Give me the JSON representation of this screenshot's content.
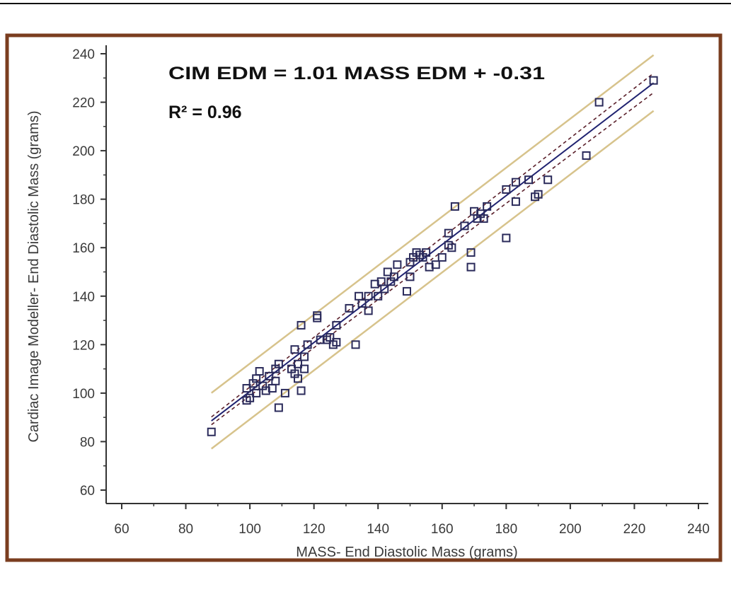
{
  "chart_data": {
    "type": "scatter",
    "xlabel": "MASS- End Diastolic Mass (grams)",
    "ylabel": "Cardiac Image Modeller- End Diastolic Mass (grams)",
    "xlim": [
      60,
      240
    ],
    "ylim": [
      60,
      240
    ],
    "x_ticks": [
      60,
      80,
      100,
      120,
      140,
      160,
      180,
      200,
      220,
      240
    ],
    "y_ticks": [
      60,
      80,
      100,
      120,
      140,
      160,
      180,
      200,
      220,
      240
    ],
    "annotations": {
      "equation": "CIM EDM = 1.01 MASS EDM + -0.31",
      "r_squared": "R² = 0.96"
    },
    "regression": {
      "slope": 1.01,
      "intercept": -0.31,
      "x_range": [
        88,
        226
      ]
    },
    "confidence_band": {
      "half_width_start": 1.6,
      "half_width_end": 4.0
    },
    "prediction_band": {
      "half_width": 11.5
    },
    "colors": {
      "frame": "#7a3d1f",
      "regression": "#1f2270",
      "confidence": "#5a1f2a",
      "prediction": "#d7c38c",
      "marker": "#2a2a5a"
    },
    "points": [
      [
        88,
        84
      ],
      [
        99,
        97
      ],
      [
        99,
        102
      ],
      [
        100,
        98
      ],
      [
        101,
        104
      ],
      [
        102,
        100
      ],
      [
        102,
        106
      ],
      [
        103,
        109
      ],
      [
        104,
        103
      ],
      [
        105,
        101
      ],
      [
        106,
        107
      ],
      [
        107,
        102
      ],
      [
        108,
        105
      ],
      [
        108,
        110
      ],
      [
        109,
        112
      ],
      [
        109,
        94
      ],
      [
        111,
        100
      ],
      [
        113,
        110
      ],
      [
        114,
        108
      ],
      [
        114,
        118
      ],
      [
        115,
        106
      ],
      [
        115,
        112
      ],
      [
        116,
        101
      ],
      [
        116,
        128
      ],
      [
        117,
        110
      ],
      [
        117,
        115
      ],
      [
        118,
        120
      ],
      [
        121,
        131
      ],
      [
        121,
        132
      ],
      [
        122,
        122
      ],
      [
        124,
        122
      ],
      [
        125,
        123
      ],
      [
        126,
        120
      ],
      [
        127,
        121
      ],
      [
        127,
        128
      ],
      [
        131,
        135
      ],
      [
        133,
        120
      ],
      [
        134,
        140
      ],
      [
        135,
        137
      ],
      [
        137,
        140
      ],
      [
        137,
        134
      ],
      [
        139,
        145
      ],
      [
        140,
        140
      ],
      [
        141,
        146
      ],
      [
        142,
        143
      ],
      [
        143,
        150
      ],
      [
        144,
        146
      ],
      [
        145,
        148
      ],
      [
        146,
        153
      ],
      [
        149,
        142
      ],
      [
        150,
        148
      ],
      [
        150,
        154
      ],
      [
        151,
        156
      ],
      [
        152,
        158
      ],
      [
        153,
        157
      ],
      [
        154,
        156
      ],
      [
        155,
        158
      ],
      [
        156,
        152
      ],
      [
        158,
        153
      ],
      [
        160,
        156
      ],
      [
        162,
        166
      ],
      [
        162,
        161
      ],
      [
        163,
        160
      ],
      [
        164,
        177
      ],
      [
        167,
        169
      ],
      [
        169,
        158
      ],
      [
        169,
        152
      ],
      [
        170,
        175
      ],
      [
        171,
        172
      ],
      [
        172,
        174
      ],
      [
        173,
        172
      ],
      [
        174,
        177
      ],
      [
        180,
        164
      ],
      [
        180,
        184
      ],
      [
        183,
        187
      ],
      [
        183,
        179
      ],
      [
        187,
        188
      ],
      [
        189,
        181
      ],
      [
        190,
        182
      ],
      [
        193,
        188
      ],
      [
        205,
        198
      ],
      [
        209,
        220
      ],
      [
        226,
        229
      ]
    ]
  }
}
